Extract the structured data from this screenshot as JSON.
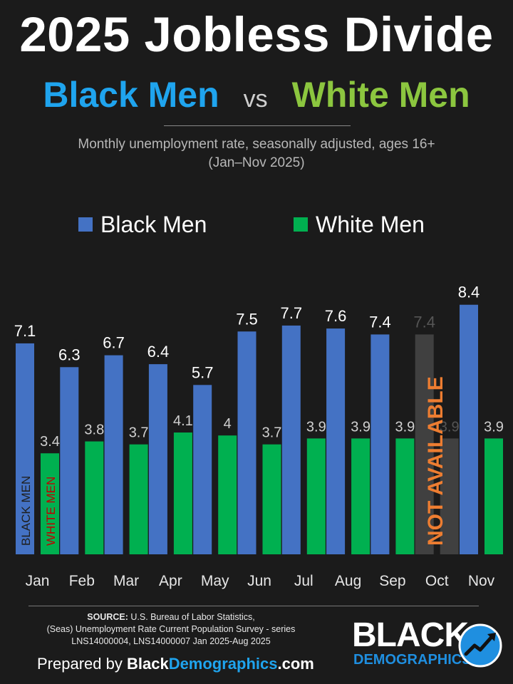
{
  "header": {
    "title": "2025 Jobless Divide",
    "subtitle_black": "Black Men",
    "subtitle_vs": "vs",
    "subtitle_white": "White Men",
    "description_line1": "Monthly unemployment rate, seasonally adjusted, ages 16+",
    "description_line2": "(Jan–Nov 2025)"
  },
  "legend": {
    "black_label": "Black Men",
    "white_label": "White Men"
  },
  "colors": {
    "black_men": "#4472c4",
    "white_men": "#00b050",
    "unavailable": "#404040",
    "not_available_text": "#ed7d31",
    "inbar_black_text": "#1f1f1f",
    "inbar_white_text": "#c00000"
  },
  "chart_data": {
    "type": "bar",
    "categories": [
      "Jan",
      "Feb",
      "Mar",
      "Apr",
      "May",
      "Jun",
      "Jul",
      "Aug",
      "Sep",
      "Oct",
      "Nov"
    ],
    "series": [
      {
        "name": "Black Men",
        "values": [
          7.1,
          6.3,
          6.7,
          6.4,
          5.7,
          7.5,
          7.7,
          7.6,
          7.4,
          7.4,
          8.4
        ],
        "labels": [
          "7.1",
          "6.3",
          "6.7",
          "6.4",
          "5.7",
          "7.5",
          "7.7",
          "7.6",
          "7.4",
          "7.4",
          "8.4"
        ]
      },
      {
        "name": "White Men",
        "values": [
          3.4,
          3.8,
          3.7,
          4.1,
          4.0,
          3.7,
          3.9,
          3.9,
          3.9,
          3.9,
          3.9
        ],
        "labels": [
          "3.4",
          "3.8",
          "3.7",
          "4.1",
          "4",
          "3.7",
          "3.9",
          "3.9",
          "3.9",
          "3.9",
          "3.9"
        ]
      }
    ],
    "unavailable_category": "Oct",
    "unavailable_label": "NOT AVAILABLE",
    "inbar_label_black": "BLACK MEN",
    "inbar_label_white": "WHITE MEN",
    "ylim": [
      0,
      8.5
    ],
    "grid": false,
    "legend": "top"
  },
  "footer": {
    "source_label": "SOURCE:",
    "source_line1": " U.S. Bureau of Labor Statistics,",
    "source_line2": "(Seas) Unemployment Rate Current Population Survey - series",
    "source_line3": "LNS14000004, LNS14000007 Jan 2025-Aug 2025",
    "prepared_by": "Prepared by ",
    "site_part1": "Black",
    "site_part2": "Demographics",
    "site_part3": ".com",
    "logo_line1": "BLACK",
    "logo_line2": "DEMOGRAPHICS"
  }
}
